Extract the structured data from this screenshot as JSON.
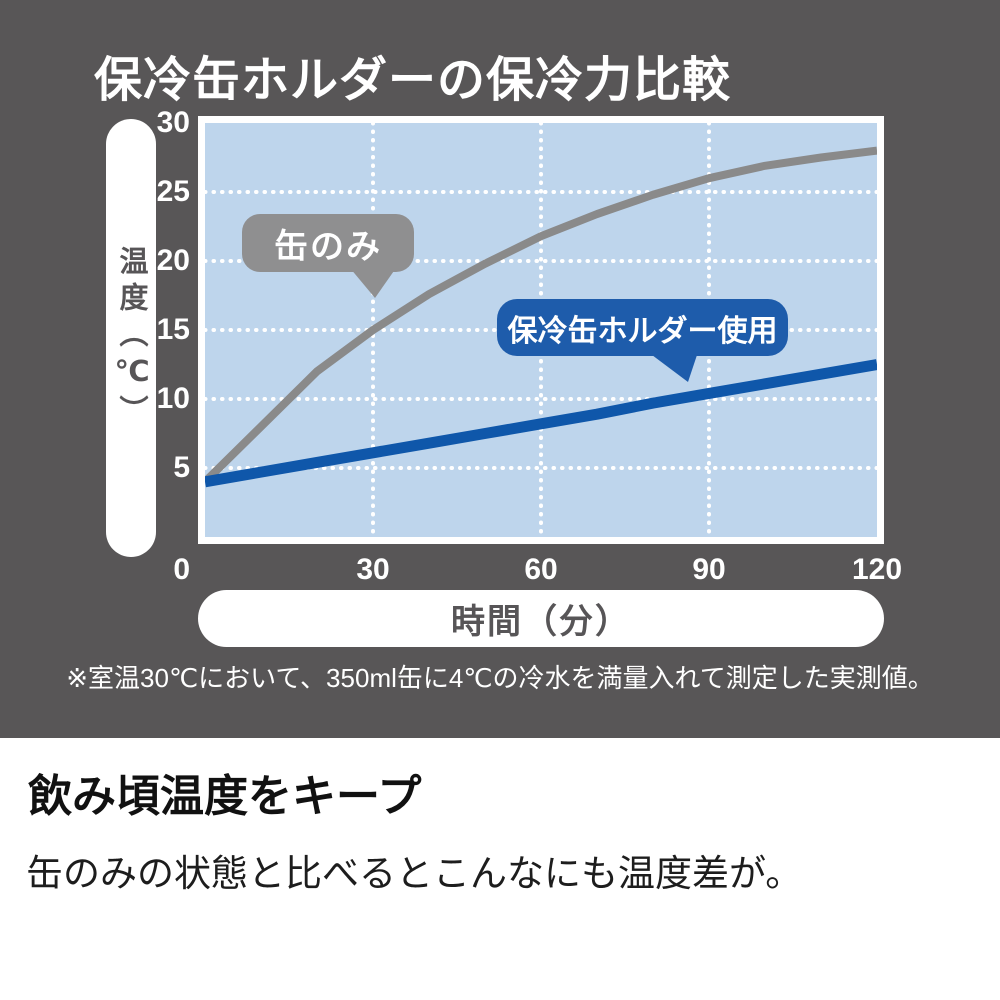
{
  "chart_data": {
    "type": "line",
    "title": "保冷缶ホルダーの保冷力比較",
    "xlabel": "時間（分）",
    "ylabel": "温度（℃）",
    "xlim": [
      0,
      120
    ],
    "ylim": [
      0,
      30
    ],
    "xticks": [
      0,
      30,
      60,
      90,
      120
    ],
    "yticks": [
      0,
      5,
      10,
      15,
      20,
      25,
      30
    ],
    "grid": "dotted-white",
    "legend_position": "in-plot-badges",
    "x": [
      0,
      10,
      20,
      30,
      40,
      50,
      60,
      70,
      80,
      90,
      100,
      110,
      120
    ],
    "series": [
      {
        "name": "缶のみ",
        "color": "#8a8a8a",
        "line_width": 8,
        "values": [
          4,
          8,
          12,
          15,
          17.6,
          19.8,
          21.8,
          23.4,
          24.8,
          26,
          26.9,
          27.5,
          28
        ]
      },
      {
        "name": "保冷缶ホルダー使用",
        "color": "#0f57aa",
        "line_width": 11,
        "values": [
          4,
          4.7,
          5.4,
          6.1,
          6.8,
          7.5,
          8.2,
          8.9,
          9.7,
          10.4,
          11.1,
          11.8,
          12.5
        ]
      }
    ]
  },
  "footnote": "※室温30℃において、350ml缶に4℃の冷水を満量入れて測定した実測値。",
  "section": {
    "heading": "飲み頃温度をキープ",
    "body": "缶のみの状態と比べるとこんなにも温度差が。"
  },
  "colors": {
    "background_dark": "#585657",
    "plot_bg": "#bed5ec",
    "badge_gray": "#8f8f90",
    "badge_blue": "#1e5cab",
    "line_gray": "#8a8a8a",
    "line_blue": "#0f57aa",
    "pill_text": "#575557",
    "grid_white": "#ffffff"
  }
}
